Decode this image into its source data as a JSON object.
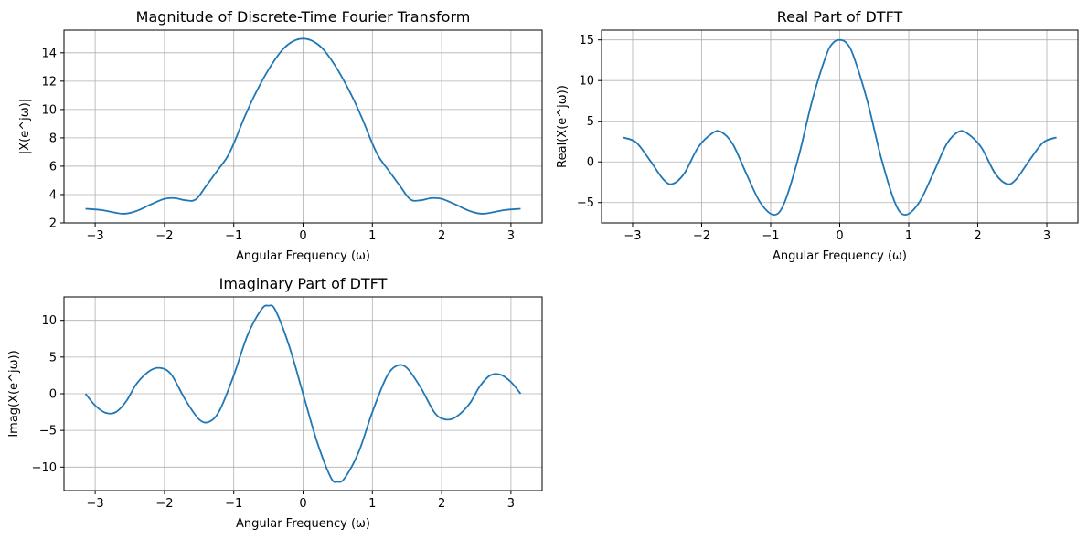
{
  "figure": {
    "background": "#ffffff",
    "line_color": "#1f77b4",
    "grid_color": "#b0b0b0"
  },
  "chart_data": [
    {
      "type": "line",
      "title": "Magnitude of Discrete-Time Fourier Transform",
      "xlabel": "Angular Frequency (ω)",
      "ylabel": "|X(e^jω)|",
      "xlim": [
        -3.45,
        3.45
      ],
      "ylim": [
        2.0,
        15.6
      ],
      "xticks": [
        -3,
        -2,
        -1,
        0,
        1,
        2,
        3
      ],
      "xtick_labels": [
        "−3",
        "−2",
        "−1",
        "0",
        "1",
        "2",
        "3"
      ],
      "yticks": [
        2,
        4,
        6,
        8,
        10,
        12,
        14
      ],
      "ytick_labels": [
        "2",
        "4",
        "6",
        "8",
        "10",
        "12",
        "14"
      ],
      "grid": true,
      "series": [
        {
          "color": "#1f77b4",
          "x": [
            -3.14,
            -2.9,
            -2.6,
            -2.4,
            -2.2,
            -2.0,
            -1.85,
            -1.7,
            -1.55,
            -1.4,
            -1.25,
            -1.1,
            -1.0,
            -0.85,
            -0.7,
            -0.5,
            -0.3,
            -0.15,
            0.0,
            0.15,
            0.3,
            0.5,
            0.7,
            0.85,
            1.0,
            1.1,
            1.25,
            1.4,
            1.55,
            1.7,
            1.85,
            2.0,
            2.2,
            2.4,
            2.6,
            2.9,
            3.14
          ],
          "y": [
            3.0,
            2.9,
            2.65,
            2.85,
            3.3,
            3.7,
            3.75,
            3.6,
            3.65,
            4.6,
            5.6,
            6.6,
            7.6,
            9.4,
            11.0,
            12.8,
            14.2,
            14.8,
            15.0,
            14.8,
            14.2,
            12.8,
            11.0,
            9.4,
            7.6,
            6.6,
            5.6,
            4.6,
            3.65,
            3.6,
            3.75,
            3.7,
            3.3,
            2.85,
            2.65,
            2.9,
            3.0
          ]
        }
      ]
    },
    {
      "type": "line",
      "title": "Real Part of DTFT",
      "xlabel": "Angular Frequency (ω)",
      "ylabel": "Real(X(e^jω))",
      "xlim": [
        -3.45,
        3.45
      ],
      "ylim": [
        -7.5,
        16.2
      ],
      "xticks": [
        -3,
        -2,
        -1,
        0,
        1,
        2,
        3
      ],
      "xtick_labels": [
        "−3",
        "−2",
        "−1",
        "0",
        "1",
        "2",
        "3"
      ],
      "yticks": [
        -5,
        0,
        5,
        10,
        15
      ],
      "ytick_labels": [
        "−5",
        "0",
        "5",
        "10",
        "15"
      ],
      "grid": true,
      "series": [
        {
          "color": "#1f77b4",
          "x": [
            -3.14,
            -2.95,
            -2.75,
            -2.55,
            -2.42,
            -2.25,
            -2.05,
            -1.85,
            -1.72,
            -1.55,
            -1.35,
            -1.15,
            -0.95,
            -0.8,
            -0.6,
            -0.4,
            -0.2,
            -0.1,
            0.0,
            0.1,
            0.2,
            0.4,
            0.6,
            0.8,
            0.95,
            1.15,
            1.35,
            1.55,
            1.72,
            1.85,
            2.05,
            2.25,
            2.42,
            2.55,
            2.75,
            2.95,
            3.14
          ],
          "y": [
            3.0,
            2.4,
            0.2,
            -2.2,
            -2.7,
            -1.4,
            1.8,
            3.5,
            3.7,
            2.2,
            -1.5,
            -5.0,
            -6.5,
            -5.0,
            0.5,
            7.5,
            13.0,
            14.6,
            15.0,
            14.6,
            13.0,
            7.5,
            0.5,
            -5.0,
            -6.5,
            -5.0,
            -1.5,
            2.2,
            3.7,
            3.5,
            1.8,
            -1.4,
            -2.7,
            -2.2,
            0.2,
            2.4,
            3.0
          ]
        }
      ]
    },
    {
      "type": "line",
      "title": "Imaginary Part of DTFT",
      "xlabel": "Angular Frequency (ω)",
      "ylabel": "Imag(X(e^jω))",
      "xlim": [
        -3.45,
        3.45
      ],
      "ylim": [
        -13.2,
        13.2
      ],
      "xticks": [
        -3,
        -2,
        -1,
        0,
        1,
        2,
        3
      ],
      "xtick_labels": [
        "−3",
        "−2",
        "−1",
        "0",
        "1",
        "2",
        "3"
      ],
      "yticks": [
        -10,
        -5,
        0,
        5,
        10
      ],
      "ytick_labels": [
        "−10",
        "−5",
        "0",
        "5",
        "10"
      ],
      "grid": true,
      "series": [
        {
          "color": "#1f77b4",
          "x": [
            -3.14,
            -3.0,
            -2.85,
            -2.7,
            -2.55,
            -2.4,
            -2.2,
            -2.05,
            -1.9,
            -1.7,
            -1.5,
            -1.35,
            -1.2,
            -1.0,
            -0.8,
            -0.6,
            -0.5,
            -0.4,
            -0.2,
            0.0,
            0.2,
            0.4,
            0.5,
            0.6,
            0.8,
            1.0,
            1.2,
            1.35,
            1.5,
            1.7,
            1.9,
            2.05,
            2.2,
            2.4,
            2.55,
            2.7,
            2.85,
            3.0,
            3.14
          ],
          "y": [
            0.0,
            -1.6,
            -2.6,
            -2.5,
            -1.0,
            1.4,
            3.2,
            3.5,
            2.6,
            -0.8,
            -3.5,
            -3.8,
            -2.2,
            2.5,
            8.0,
            11.5,
            12.0,
            11.4,
            6.5,
            0.0,
            -6.5,
            -11.4,
            -12.0,
            -11.5,
            -8.0,
            -2.5,
            2.2,
            3.8,
            3.5,
            0.8,
            -2.6,
            -3.5,
            -3.2,
            -1.4,
            1.0,
            2.5,
            2.6,
            1.6,
            0.0
          ]
        }
      ]
    }
  ]
}
